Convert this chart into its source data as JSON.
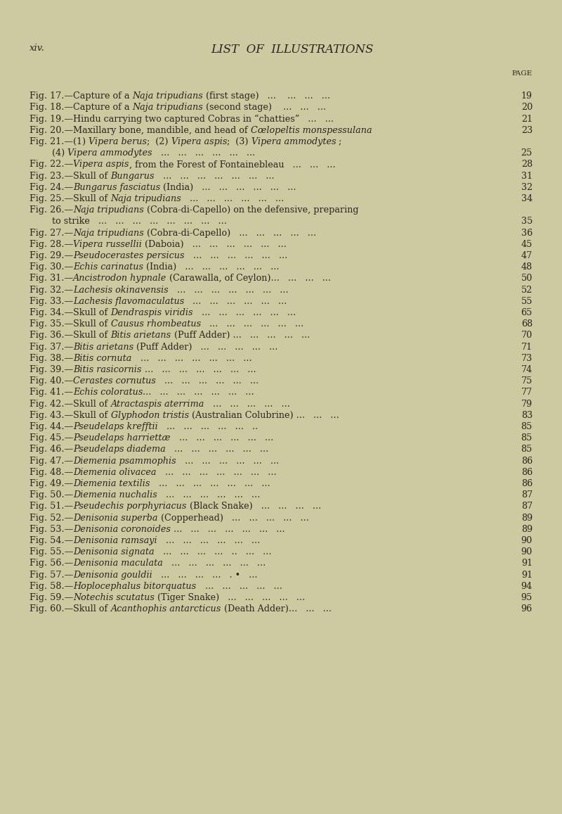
{
  "bg_color": "#cdc9a0",
  "text_color": "#2a2520",
  "page_label": "xiv.",
  "title": "LIST  OF  ILLUSTRATIONS",
  "page_col_label": "PAGE",
  "title_fontsize": 12.0,
  "label_fontsize": 9.5,
  "body_fontsize": 9.2,
  "figsize": [
    8.0,
    11.57
  ],
  "dpi": 100,
  "entries": [
    {
      "fig": "17",
      "parts": [
        [
          "r",
          "Capture of a "
        ],
        [
          "i",
          "Naja tripudians"
        ],
        [
          "r",
          " (first stage)   ...    ...   ...   ..."
        ]
      ],
      "page": "19"
    },
    {
      "fig": "18",
      "parts": [
        [
          "r",
          "Capture of a "
        ],
        [
          "i",
          "Naja tripudians"
        ],
        [
          "r",
          " (second stage)    ...   ...   ..."
        ]
      ],
      "page": "20"
    },
    {
      "fig": "19",
      "parts": [
        [
          "r",
          "Hindu carrying two captured Cobras in “chatties”   ...   ..."
        ]
      ],
      "page": "21"
    },
    {
      "fig": "20",
      "parts": [
        [
          "r",
          "Maxillary bone, mandible, and head of "
        ],
        [
          "i",
          "Cœlopeltis monspessulana"
        ]
      ],
      "page": "23"
    },
    {
      "fig": "21",
      "parts": [
        [
          "r",
          "(1) "
        ],
        [
          "i",
          "Vipera berus"
        ],
        [
          "r",
          ";  (2) "
        ],
        [
          "i",
          "Vipera aspis"
        ],
        [
          "r",
          ";  (3) "
        ],
        [
          "i",
          "Vipera ammodytes"
        ],
        [
          "r",
          " ;"
        ]
      ],
      "page": null
    },
    {
      "fig": null,
      "parts": [
        [
          "r",
          "        (4) "
        ],
        [
          "i",
          "Vipera ammodytes"
        ],
        [
          "r",
          "   ...   ...   ...   ...   ...   ..."
        ]
      ],
      "page": "25"
    },
    {
      "fig": "22",
      "parts": [
        [
          "i",
          "Vipera aspis"
        ],
        [
          "r",
          ", from the Forest of Fontainebleau   ...   ...   ..."
        ]
      ],
      "page": "28"
    },
    {
      "fig": "23",
      "parts": [
        [
          "r",
          "Skull of "
        ],
        [
          "i",
          "Bungarus"
        ],
        [
          "r",
          "   ...   ...   ...   ...   ...   ...   ..."
        ]
      ],
      "page": "31"
    },
    {
      "fig": "24",
      "parts": [
        [
          "i",
          "Bungarus fasciatus"
        ],
        [
          "r",
          " (India)   ...   ...   ...   ...   ...   ..."
        ]
      ],
      "page": "32"
    },
    {
      "fig": "25",
      "parts": [
        [
          "r",
          "Skull of "
        ],
        [
          "i",
          "Naja tripudians"
        ],
        [
          "r",
          "   ...   ...   ...   ...   ...   ..."
        ]
      ],
      "page": "34"
    },
    {
      "fig": "26",
      "parts": [
        [
          "i",
          "Naja tripudians"
        ],
        [
          "r",
          " (Cobra-di-Capello) on the defensive, preparing"
        ]
      ],
      "page": null
    },
    {
      "fig": null,
      "parts": [
        [
          "r",
          "        to strike   ...   ...   ...   ...   ...   ...   ...   ..."
        ]
      ],
      "page": "35"
    },
    {
      "fig": "27",
      "parts": [
        [
          "i",
          "Naja tripudians"
        ],
        [
          "r",
          " (Cobra-di-Capello)   ...   ...   ...   ...   ..."
        ]
      ],
      "page": "36"
    },
    {
      "fig": "28",
      "parts": [
        [
          "i",
          "Vipera russellii"
        ],
        [
          "r",
          " (Daboia)   ...   ...   ...   ...   ...   ..."
        ]
      ],
      "page": "45"
    },
    {
      "fig": "29",
      "parts": [
        [
          "i",
          "Pseudocerastes persicus"
        ],
        [
          "r",
          "   ...   ...   ...   ...   ...   ..."
        ]
      ],
      "page": "47"
    },
    {
      "fig": "30",
      "parts": [
        [
          "i",
          "Echis carinatus"
        ],
        [
          "r",
          " (India)   ...   ...   ...   ...   ...   ..."
        ]
      ],
      "page": "48"
    },
    {
      "fig": "31",
      "parts": [
        [
          "i",
          "Ancistrodon hypnale"
        ],
        [
          "r",
          " (Carawalla, of Ceylon)...   ...   ...   ..."
        ]
      ],
      "page": "50"
    },
    {
      "fig": "32",
      "parts": [
        [
          "i",
          "Lachesis okinavensis"
        ],
        [
          "r",
          "   ...   ...   ...   ...   ...   ...   ..."
        ]
      ],
      "page": "52"
    },
    {
      "fig": "33",
      "parts": [
        [
          "i",
          "Lachesis flavomaculatus"
        ],
        [
          "r",
          "   ...   ...   ...   ...   ...   ..."
        ]
      ],
      "page": "55"
    },
    {
      "fig": "34",
      "parts": [
        [
          "r",
          "Skull of "
        ],
        [
          "i",
          "Dendraspis viridis"
        ],
        [
          "r",
          "   ...   ...   ...   ...   ...   ..."
        ]
      ],
      "page": "65"
    },
    {
      "fig": "35",
      "parts": [
        [
          "r",
          "Skull of "
        ],
        [
          "i",
          "Causus rhombeatus"
        ],
        [
          "r",
          "   ...   ...   ...   ...   ...   ..."
        ]
      ],
      "page": "68"
    },
    {
      "fig": "36",
      "parts": [
        [
          "r",
          "Skull of "
        ],
        [
          "i",
          "Bitis arietans"
        ],
        [
          "r",
          " (Puff Adder) ...   ...   ...   ...   ..."
        ]
      ],
      "page": "70"
    },
    {
      "fig": "37",
      "parts": [
        [
          "i",
          "Bitis arietans"
        ],
        [
          "r",
          " (Puff Adder)   ...   ...   ...   ...   ..."
        ]
      ],
      "page": "71"
    },
    {
      "fig": "38",
      "parts": [
        [
          "i",
          "Bitis cornuta"
        ],
        [
          "r",
          "   ...   ...   ...   ...   ...   ...   ..."
        ]
      ],
      "page": "73"
    },
    {
      "fig": "39",
      "parts": [
        [
          "i",
          "Bitis rasicornis"
        ],
        [
          "r",
          " ...   ...   ...   ...   ...   ...   ..."
        ]
      ],
      "page": "74"
    },
    {
      "fig": "40",
      "parts": [
        [
          "i",
          "Cerastes cornutus"
        ],
        [
          "r",
          "   ...   ...   ...   ...   ...   ..."
        ]
      ],
      "page": "75"
    },
    {
      "fig": "41",
      "parts": [
        [
          "i",
          "Echis coloratus"
        ],
        [
          "r",
          "...   ...   ...   ...   ...   ...   ..."
        ]
      ],
      "page": "77"
    },
    {
      "fig": "42",
      "parts": [
        [
          "r",
          "Skull of "
        ],
        [
          "i",
          "Atractaspis aterrima"
        ],
        [
          "r",
          "   ...   ...   ...   ...   ..."
        ]
      ],
      "page": "79"
    },
    {
      "fig": "43",
      "parts": [
        [
          "r",
          "Skull of "
        ],
        [
          "i",
          "Glyphodon tristis"
        ],
        [
          "r",
          " (Australian Colubrine) ...   ...   ..."
        ]
      ],
      "page": "83"
    },
    {
      "fig": "44",
      "parts": [
        [
          "i",
          "Pseudelaps krefftii"
        ],
        [
          "r",
          "   ...   ...   ...   ...   ...   .."
        ]
      ],
      "page": "85"
    },
    {
      "fig": "45",
      "parts": [
        [
          "i",
          "Pseudelaps harriettæ"
        ],
        [
          "r",
          "   ...   ...   ...   ...   ...   ..."
        ]
      ],
      "page": "85"
    },
    {
      "fig": "46",
      "parts": [
        [
          "i",
          "Pseudelaps diadema"
        ],
        [
          "r",
          "   ...   ...   ...   ...   ...   ..."
        ]
      ],
      "page": "85"
    },
    {
      "fig": "47",
      "parts": [
        [
          "i",
          "Diemenia psammophis"
        ],
        [
          "r",
          "   ...   ...   ...   ...   ...   ..."
        ]
      ],
      "page": "86"
    },
    {
      "fig": "48",
      "parts": [
        [
          "i",
          "Diemenia olivacea"
        ],
        [
          "r",
          "   ...   ...   ...   ...   ...   ...   ..."
        ]
      ],
      "page": "86"
    },
    {
      "fig": "49",
      "parts": [
        [
          "i",
          "Diemenia textilis"
        ],
        [
          "r",
          "   ...   ...   ...   ...   ...   ...   ..."
        ]
      ],
      "page": "86"
    },
    {
      "fig": "50",
      "parts": [
        [
          "i",
          "Diemenia nuchalis"
        ],
        [
          "r",
          "   ...   ...   ...   ...   ...   ..."
        ]
      ],
      "page": "87"
    },
    {
      "fig": "51",
      "parts": [
        [
          "i",
          "Pseudechis porphyriacus"
        ],
        [
          "r",
          " (Black Snake)   ...   ...   ...   ..."
        ]
      ],
      "page": "87"
    },
    {
      "fig": "52",
      "parts": [
        [
          "i",
          "Denisonia superba"
        ],
        [
          "r",
          " (Copperhead)   ...   ...   ...   ...   ..."
        ]
      ],
      "page": "89"
    },
    {
      "fig": "53",
      "parts": [
        [
          "i",
          "Denisonia coronoides"
        ],
        [
          "r",
          " ...   ...   ...   ...   ...   ...   ..."
        ]
      ],
      "page": "89"
    },
    {
      "fig": "54",
      "parts": [
        [
          "i",
          "Denisonia ramsayi"
        ],
        [
          "r",
          "   ...   ...   ...   ...   ...   ..."
        ]
      ],
      "page": "90"
    },
    {
      "fig": "55",
      "parts": [
        [
          "i",
          "Denisonia signata"
        ],
        [
          "r",
          "   ...   ...   ...   ...   ..   ...   ..."
        ]
      ],
      "page": "90"
    },
    {
      "fig": "56",
      "parts": [
        [
          "i",
          "Denisonia maculata"
        ],
        [
          "r",
          "   ...   ...   ...   ...   ...   ..."
        ]
      ],
      "page": "91"
    },
    {
      "fig": "57",
      "parts": [
        [
          "i",
          "Denisonia gouldii"
        ],
        [
          "r",
          "   ...   ...   ...   ...   . •   ..."
        ]
      ],
      "page": "91"
    },
    {
      "fig": "58",
      "parts": [
        [
          "i",
          "Hoplocephalus bitorquatus"
        ],
        [
          "r",
          "   ...   ...   ...   ...   ..."
        ]
      ],
      "page": "94"
    },
    {
      "fig": "59",
      "parts": [
        [
          "i",
          "Notechis scutatus"
        ],
        [
          "r",
          " (Tiger Snake)   ...   ...   ...   ...   ..."
        ]
      ],
      "page": "95"
    },
    {
      "fig": "60",
      "parts": [
        [
          "r",
          "Skull of "
        ],
        [
          "i",
          "Acanthophis antarcticus"
        ],
        [
          "r",
          " (Death Adder)...   ...   ..."
        ]
      ],
      "page": "96"
    }
  ]
}
